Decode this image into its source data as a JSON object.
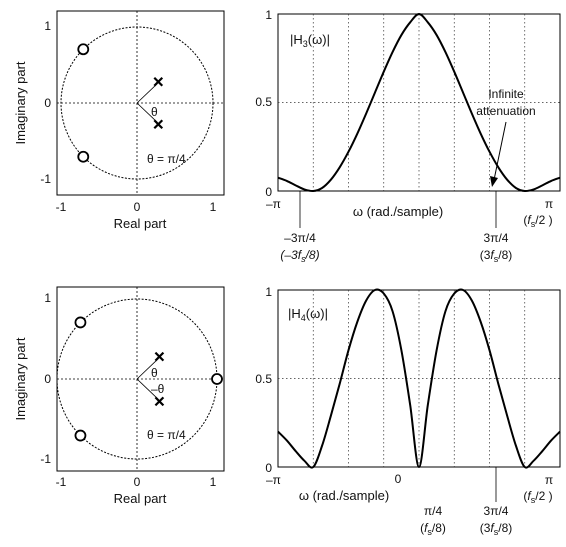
{
  "chart_data": [
    {
      "id": "pz1",
      "type": "scatter",
      "subtype": "pole-zero plot",
      "xlabel": "Real part",
      "ylabel": "Imaginary part",
      "xlim": [
        -1.25,
        1.25
      ],
      "ylim": [
        -1.25,
        1.25
      ],
      "xticks": [
        -1,
        0,
        1
      ],
      "yticks": [
        -1,
        0,
        1
      ],
      "unit_circle": true,
      "zeros": [
        {
          "x": -0.707,
          "y": 0.707
        },
        {
          "x": -0.707,
          "y": -0.707
        }
      ],
      "poles": [
        {
          "x": 0.28,
          "y": 0.28
        },
        {
          "x": 0.28,
          "y": -0.28
        }
      ],
      "angle_symbols": [
        "θ"
      ],
      "annotation": "θ = π/4"
    },
    {
      "id": "mag1",
      "type": "line",
      "title": "|H₃(ω)|",
      "title_parts": {
        "pre": "|H",
        "sub": "3",
        "post": "(ω)|"
      },
      "xlabel": "ω (rad./sample)",
      "xlim": [
        -3.1416,
        3.1416
      ],
      "ylim": [
        0,
        1
      ],
      "yticks": [
        "0",
        "0.5",
        "1"
      ],
      "grid": "dotted",
      "series": [
        {
          "x": [
            -3.1416,
            -2.9452,
            -2.7489,
            -2.5525,
            -2.3562,
            -2.1598,
            -1.9635,
            -1.7671,
            -1.5708,
            -1.3744,
            -1.1781,
            -0.9817,
            -0.7854,
            -0.589,
            -0.3927,
            -0.1963,
            0,
            0.1963,
            0.3927,
            0.589,
            0.7854,
            0.9817,
            1.1781,
            1.3744,
            1.5708,
            1.7671,
            1.9635,
            2.1598,
            2.3562,
            2.5525,
            2.7489,
            2.9452,
            3.1416
          ],
          "values": [
            0.075,
            0.057,
            0.032,
            0.009,
            0.0,
            0.017,
            0.064,
            0.134,
            0.222,
            0.324,
            0.437,
            0.556,
            0.674,
            0.785,
            0.881,
            0.953,
            1.0,
            0.953,
            0.881,
            0.785,
            0.674,
            0.556,
            0.437,
            0.324,
            0.222,
            0.134,
            0.064,
            0.017,
            0.0,
            0.009,
            0.032,
            0.057,
            0.075
          ]
        }
      ],
      "annotation": {
        "lines": [
          "Infinite",
          "attenuation"
        ],
        "points_to": {
          "x": 2.3562,
          "y": 0
        }
      }
    },
    {
      "id": "pz2",
      "type": "scatter",
      "subtype": "pole-zero plot",
      "xlabel": "Real part",
      "ylabel": "Imaginary part",
      "xlim": [
        -1.25,
        1.25
      ],
      "ylim": [
        -1.25,
        1.25
      ],
      "xticks": [
        -1,
        0,
        1
      ],
      "yticks": [
        -1,
        0,
        1
      ],
      "unit_circle": true,
      "zeros": [
        {
          "x": -0.707,
          "y": 0.707
        },
        {
          "x": -0.707,
          "y": -0.707
        },
        {
          "x": 1.0,
          "y": 0.0
        }
      ],
      "poles": [
        {
          "x": 0.28,
          "y": 0.28
        },
        {
          "x": 0.28,
          "y": -0.28
        }
      ],
      "angle_symbols": [
        "θ",
        "–θ"
      ],
      "annotation": "θ = π/4"
    },
    {
      "id": "mag2",
      "type": "line",
      "title": "|H₄(ω)|",
      "title_parts": {
        "pre": "|H",
        "sub": "4",
        "post": "(ω)|"
      },
      "xlabel": "ω (rad./sample)",
      "xlim": [
        -3.1416,
        3.1416
      ],
      "ylim": [
        0,
        1
      ],
      "yticks": [
        "0",
        "0.5",
        "1"
      ],
      "grid": "dotted",
      "series": [
        {
          "x": [
            -3.1416,
            -2.9452,
            -2.7489,
            -2.5525,
            -2.3562,
            -2.1598,
            -1.9635,
            -1.7671,
            -1.5708,
            -1.3744,
            -1.1781,
            -0.9817,
            -0.7854,
            -0.589,
            -0.3927,
            -0.1963,
            0,
            0.1963,
            0.3927,
            0.589,
            0.7854,
            0.9817,
            1.1781,
            1.3744,
            1.5708,
            1.7671,
            1.9635,
            2.1598,
            2.3562,
            2.5525,
            2.7489,
            2.9452,
            3.1416
          ],
          "values": [
            0.2,
            0.15,
            0.09,
            0.035,
            0.0,
            0.12,
            0.29,
            0.47,
            0.66,
            0.82,
            0.94,
            1.0,
            0.98,
            0.88,
            0.66,
            0.35,
            0.0,
            0.35,
            0.66,
            0.88,
            0.98,
            1.0,
            0.94,
            0.82,
            0.66,
            0.47,
            0.29,
            0.12,
            0.0,
            0.035,
            0.09,
            0.15,
            0.2
          ]
        }
      ]
    }
  ],
  "labels": {
    "top": {
      "neg_pi": "–π",
      "pi": "π",
      "neg_3pi4": "–3π/4",
      "neg_3fs8": {
        "pre": "(–3",
        "sub": "s",
        "post": "/8)"
      },
      "pos_3pi4": "3π/4",
      "pos_3fs8": {
        "pre": "(3",
        "sub": "s",
        "post": "/8)"
      },
      "fs2": {
        "pre": "(",
        "sub": "s",
        "post": "/2 )"
      }
    },
    "bottom": {
      "neg_pi": "–π",
      "zero": "0",
      "pi": "π",
      "pi4": "π/4",
      "fs8": {
        "pre": "(",
        "sub": "s",
        "post": "/8)"
      },
      "pos_3pi4": "3π/4",
      "pos_3fs8": {
        "pre": "(3",
        "sub": "s",
        "post": "/8)"
      },
      "fs2": {
        "pre": "(",
        "sub": "s",
        "post": "/2 )"
      }
    }
  }
}
